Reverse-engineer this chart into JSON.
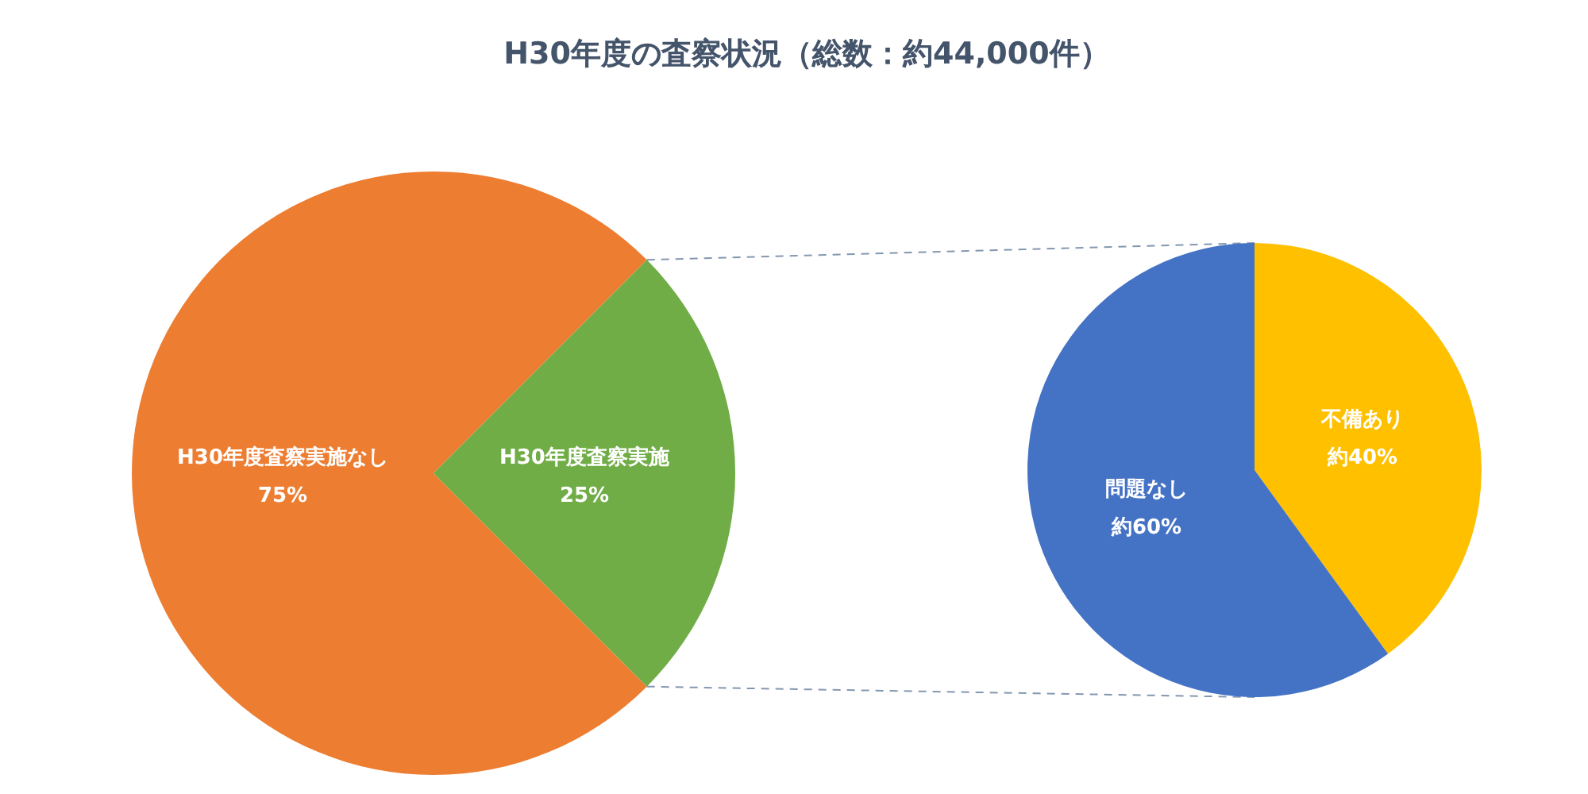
{
  "chart_data": [
    {
      "type": "pie",
      "title": "H30年度の査察状況（総数：約44,000件）",
      "categories": [
        "H30年度査察実施なし",
        "H30年度査察実施"
      ],
      "values": [
        75,
        25
      ],
      "colors": [
        "#ed7d31",
        "#70ad47"
      ],
      "value_labels": [
        "75%",
        "25%"
      ]
    },
    {
      "type": "pie",
      "categories": [
        "不備あり",
        "問題なし"
      ],
      "values": [
        40,
        60
      ],
      "colors": [
        "#ffc000",
        "#4472c4"
      ],
      "value_labels": [
        "約40%",
        "約60%"
      ]
    }
  ]
}
